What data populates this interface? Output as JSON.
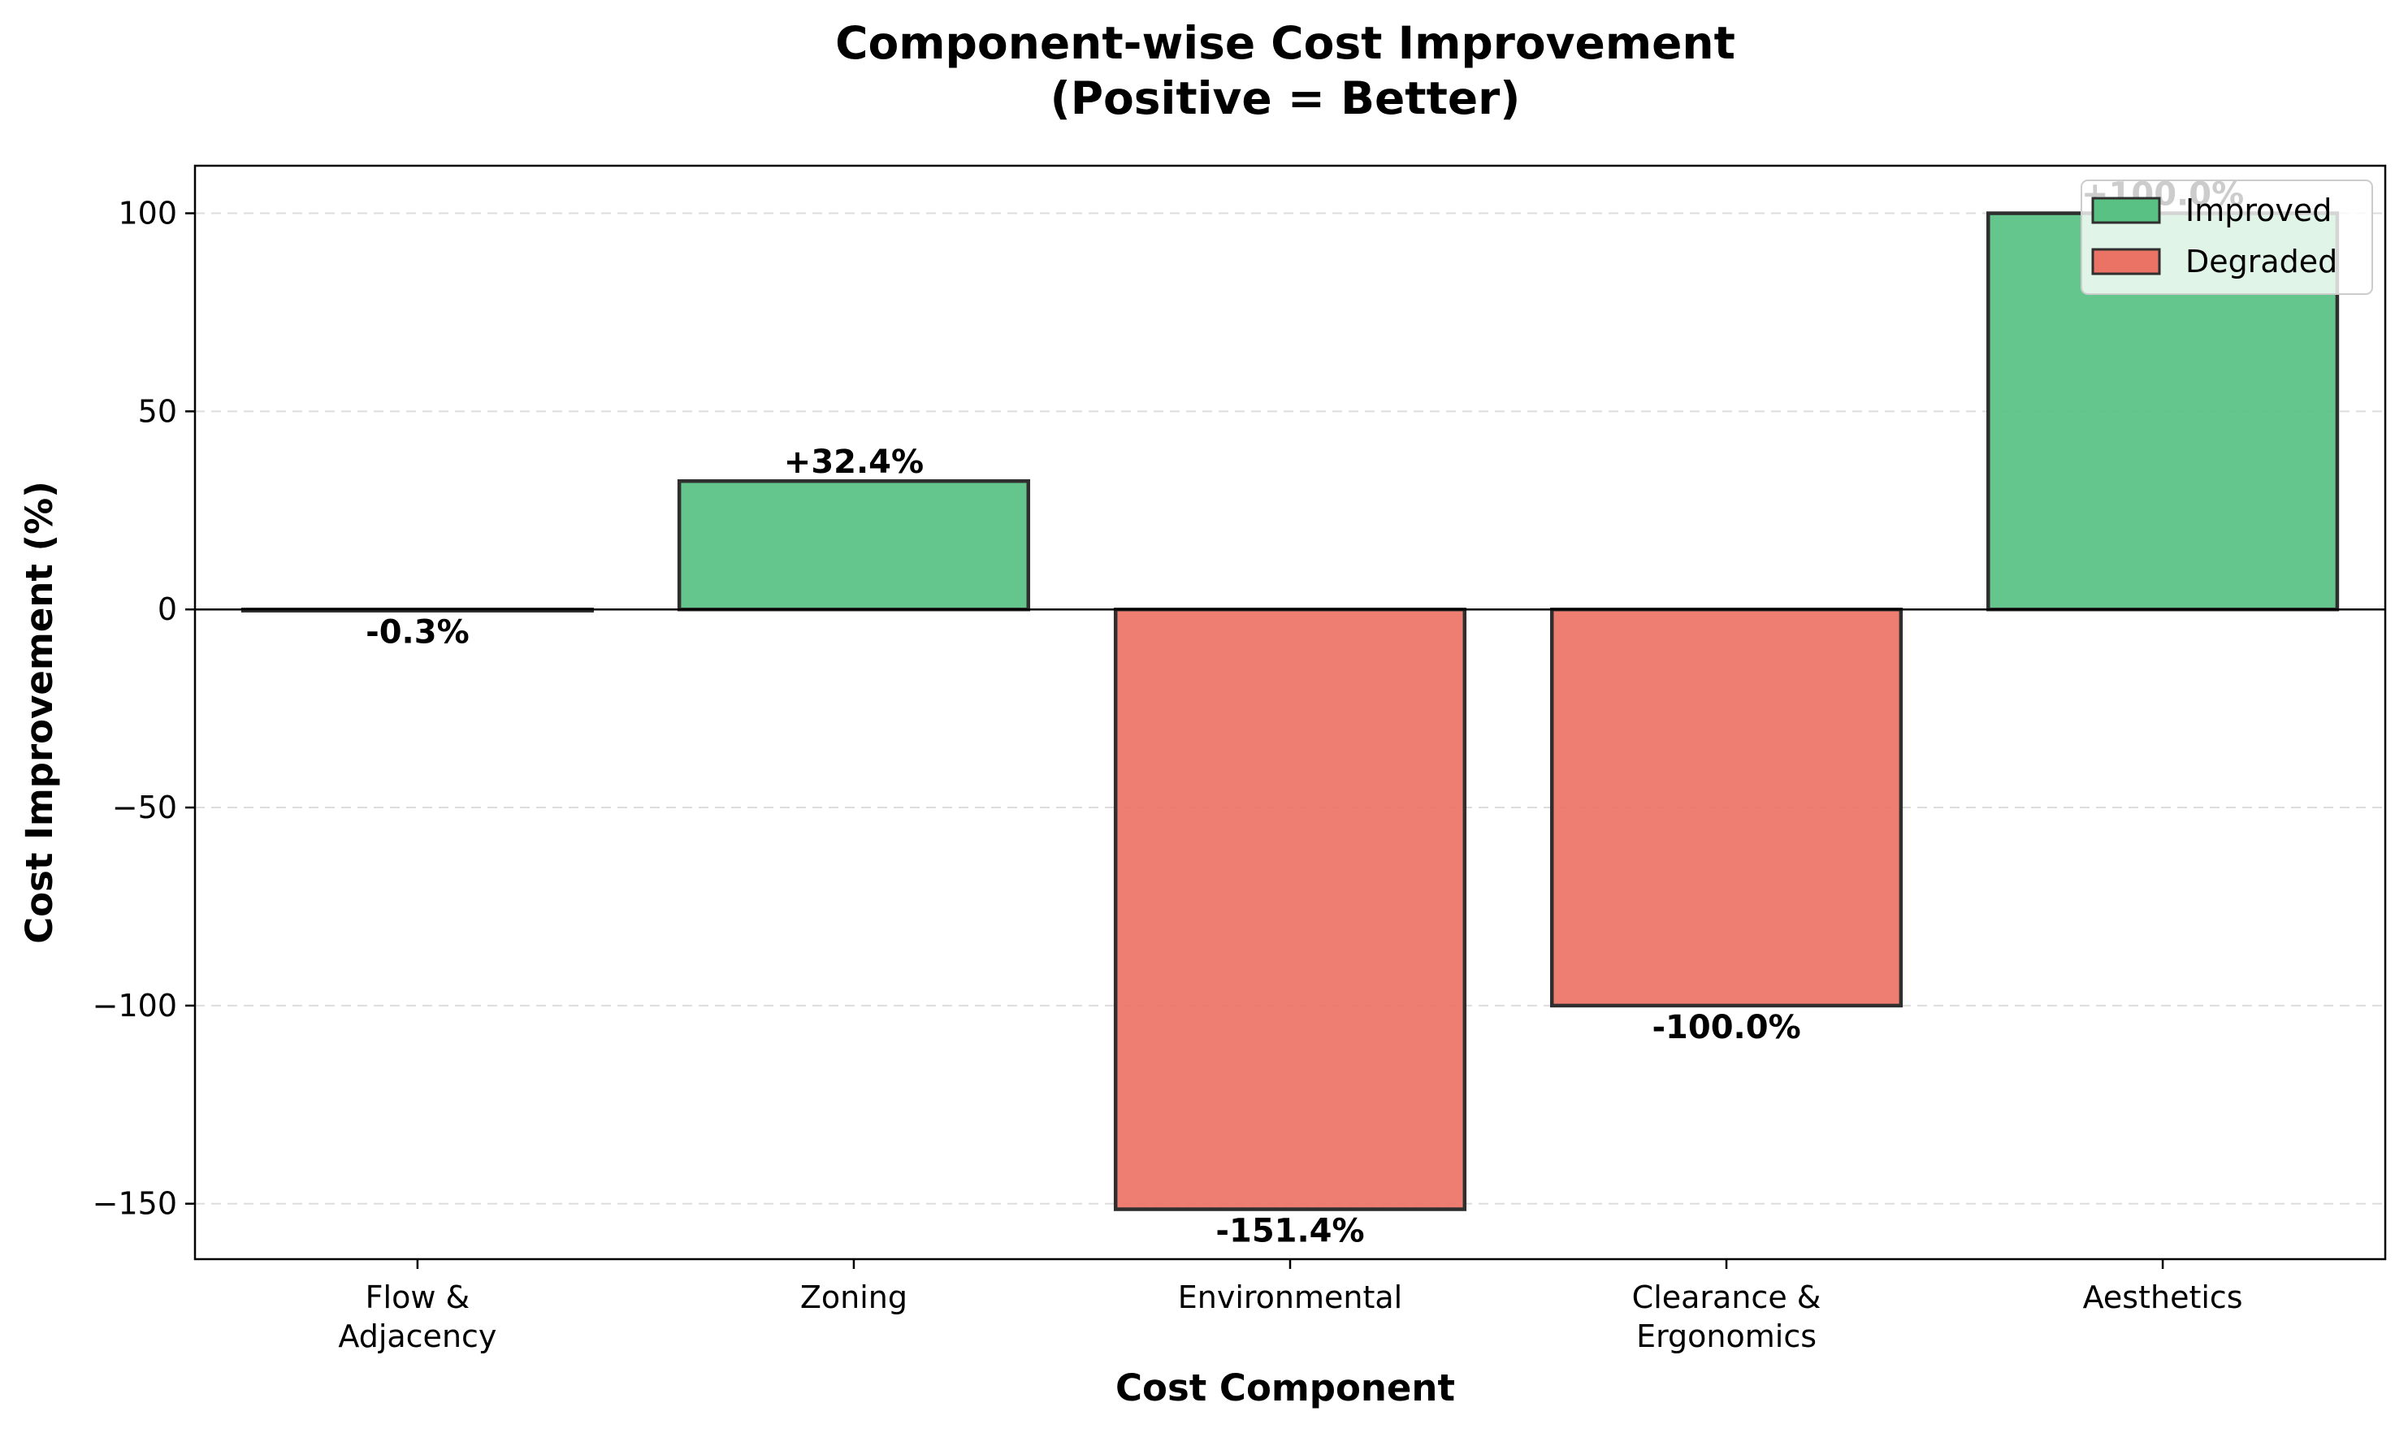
{
  "chart_data": {
    "type": "bar",
    "title": "Component-wise Cost Improvement",
    "subtitle": "(Positive = Better)",
    "xlabel": "Cost Component",
    "ylabel": "Cost Improvement (%)",
    "categories": [
      [
        "Flow &",
        "Adjacency"
      ],
      [
        "Zoning"
      ],
      [
        "Environmental"
      ],
      [
        "Clearance &",
        "Ergonomics"
      ],
      [
        "Aesthetics"
      ]
    ],
    "values": [
      -0.3,
      32.4,
      -151.4,
      -100.0,
      100.0
    ],
    "value_labels": [
      "-0.3%",
      "+32.4%",
      "-151.4%",
      "-100.0%",
      "+100.0%"
    ],
    "ylim": [
      -164,
      112
    ],
    "yticks": [
      100,
      50,
      0,
      -50,
      -100,
      -150
    ],
    "ytick_labels": [
      "100",
      "50",
      "0",
      "−50",
      "−100",
      "−150"
    ],
    "grid": "y-dashed",
    "legend": {
      "position": "top-right",
      "entries": [
        {
          "label": "Improved",
          "color": "#58c183"
        },
        {
          "label": "Degraded",
          "color": "#eb7365"
        }
      ]
    },
    "colors": {
      "improved": "#58c183",
      "degraded": "#eb7365",
      "edge": "#2f2f2f"
    }
  }
}
